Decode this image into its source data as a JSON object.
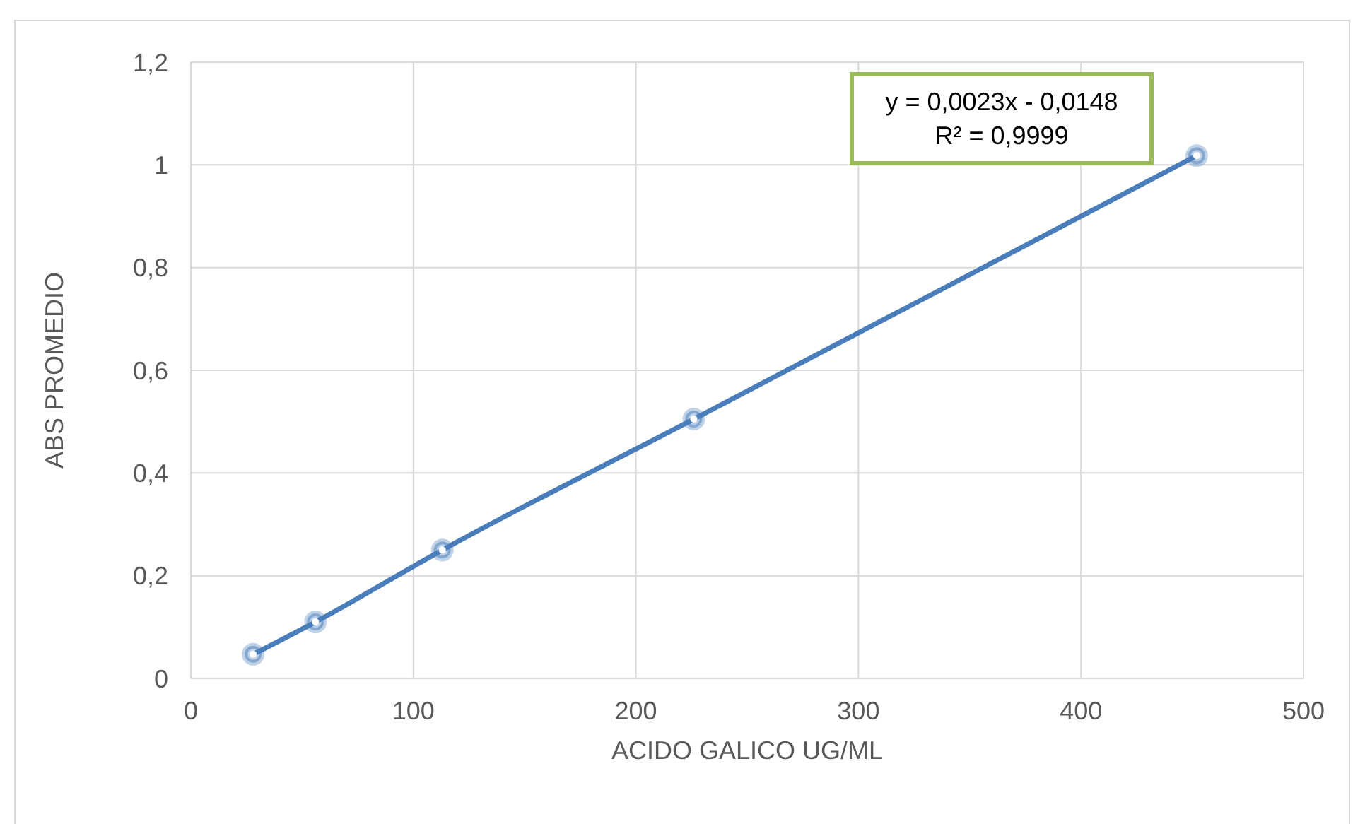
{
  "chart_data": {
    "type": "line",
    "xlabel": "ACIDO GALICO UG/ML",
    "ylabel": "ABS PROMEDIO",
    "x": [
      28,
      56,
      113,
      226,
      452
    ],
    "series": [
      {
        "color": "#4a7ebb",
        "values": [
          0.047,
          0.11,
          0.25,
          0.505,
          1.018
        ]
      }
    ],
    "xlim": [
      0,
      500
    ],
    "xticks": [
      0,
      100,
      200,
      300,
      400,
      500
    ],
    "ylim": [
      0,
      1.2
    ],
    "yticks": [
      {
        "value": 0,
        "label": "0"
      },
      {
        "value": 0.2,
        "label": "0,2"
      },
      {
        "value": 0.4,
        "label": "0,4"
      },
      {
        "value": 0.6,
        "label": "0,6"
      },
      {
        "value": 0.8,
        "label": "0,8"
      },
      {
        "value": 1,
        "label": "1"
      },
      {
        "value": 1.2,
        "label": "1,2"
      }
    ],
    "grid": true,
    "marker": "circle",
    "line_style": "solid",
    "legend": false,
    "annotations": [
      "y = 0,0023x - 0,0148",
      "R² = 0,9999"
    ]
  }
}
